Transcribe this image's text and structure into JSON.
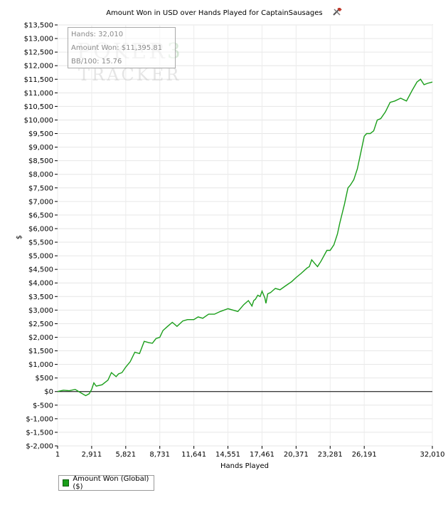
{
  "chart_data": {
    "type": "line",
    "title": "Amount Won in USD over Hands Played for CaptainSausages",
    "xlabel": "Hands Played",
    "ylabel": "$",
    "xlim": [
      1,
      32010
    ],
    "ylim": [
      -2000,
      13500
    ],
    "x_ticks": [
      1,
      2911,
      5821,
      8731,
      11641,
      14551,
      17461,
      20371,
      23281,
      26191,
      32010
    ],
    "x_tick_labels": [
      "1",
      "2,911",
      "5,821",
      "8,731",
      "11,641",
      "14,551",
      "17,461",
      "20,371",
      "23,281",
      "26,191",
      "32,010"
    ],
    "y_ticks": [
      -2000,
      -1500,
      -1000,
      -500,
      0,
      500,
      1000,
      1500,
      2000,
      2500,
      3000,
      3500,
      4000,
      4500,
      5000,
      5500,
      6000,
      6500,
      7000,
      7500,
      8000,
      8500,
      9000,
      9500,
      10000,
      10500,
      11000,
      11500,
      12000,
      12500,
      13000,
      13500
    ],
    "y_tick_labels": [
      "$-2,000",
      "$-1,500",
      "$-1,000",
      "$-500",
      "$0",
      "$500",
      "$1,000",
      "$1,500",
      "$2,000",
      "$2,500",
      "$3,000",
      "$3,500",
      "$4,000",
      "$4,500",
      "$5,000",
      "$5,500",
      "$6,000",
      "$6,500",
      "$7,000",
      "$7,500",
      "$8,000",
      "$8,500",
      "$9,000",
      "$9,500",
      "$10,000",
      "$10,500",
      "$11,000",
      "$11,500",
      "$12,000",
      "$12,500",
      "$13,000",
      "$13,500"
    ],
    "grid": true,
    "legend_position": "bottom-left",
    "series": [
      {
        "name": "Amount Won (Global) ($)",
        "color": "#1a9e1a",
        "x": [
          1,
          500,
          1000,
          1500,
          2000,
          2400,
          2700,
          2911,
          3100,
          3300,
          3800,
          4300,
          4600,
          5000,
          5200,
          5500,
          5821,
          6200,
          6600,
          7000,
          7400,
          7800,
          8100,
          8400,
          8731,
          9000,
          9400,
          9800,
          10200,
          10700,
          11100,
          11641,
          12000,
          12400,
          12900,
          13400,
          13900,
          14551,
          15000,
          15400,
          15900,
          16300,
          16600,
          16750,
          16900,
          17100,
          17300,
          17461,
          17700,
          17800,
          17950,
          18200,
          18600,
          19000,
          19500,
          20000,
          20371,
          20800,
          21300,
          21500,
          21700,
          21900,
          22200,
          22500,
          23000,
          23281,
          23600,
          23900,
          24100,
          24300,
          24500,
          24800,
          25000,
          25300,
          25600,
          25900,
          26191,
          26400,
          26700,
          27000,
          27300,
          27600,
          28000,
          28400,
          28800,
          29300,
          29800,
          30300,
          30700,
          31000,
          31300,
          31600,
          32010
        ],
        "values": [
          0,
          50,
          30,
          80,
          -50,
          -150,
          -80,
          80,
          320,
          200,
          250,
          420,
          700,
          550,
          650,
          700,
          900,
          1100,
          1450,
          1400,
          1850,
          1800,
          1780,
          1950,
          2000,
          2250,
          2400,
          2550,
          2400,
          2600,
          2650,
          2650,
          2750,
          2700,
          2850,
          2850,
          2950,
          3050,
          3000,
          2950,
          3200,
          3350,
          3150,
          3350,
          3400,
          3550,
          3500,
          3700,
          3450,
          3250,
          3600,
          3650,
          3800,
          3750,
          3900,
          4050,
          4200,
          4350,
          4550,
          4600,
          4850,
          4750,
          4600,
          4800,
          5200,
          5200,
          5400,
          5800,
          6200,
          6550,
          6900,
          7500,
          7600,
          7800,
          8200,
          8800,
          9400,
          9500,
          9500,
          9600,
          10000,
          10050,
          10300,
          10650,
          10700,
          10800,
          10700,
          11100,
          11400,
          11500,
          11300,
          11350,
          11396
        ]
      }
    ]
  },
  "tooltip": {
    "hands": "Hands: 32,010",
    "amount_won": "Amount Won: $11,395.81",
    "bb100": "BB/100: 15.76"
  },
  "watermark": {
    "line1": "POKER",
    "line1_extra": "3",
    "line2": "TRACKER"
  },
  "legend": {
    "label": "Amount Won (Global) ($)"
  },
  "icons": {
    "title_icon": "wrench-hammer-icon"
  }
}
